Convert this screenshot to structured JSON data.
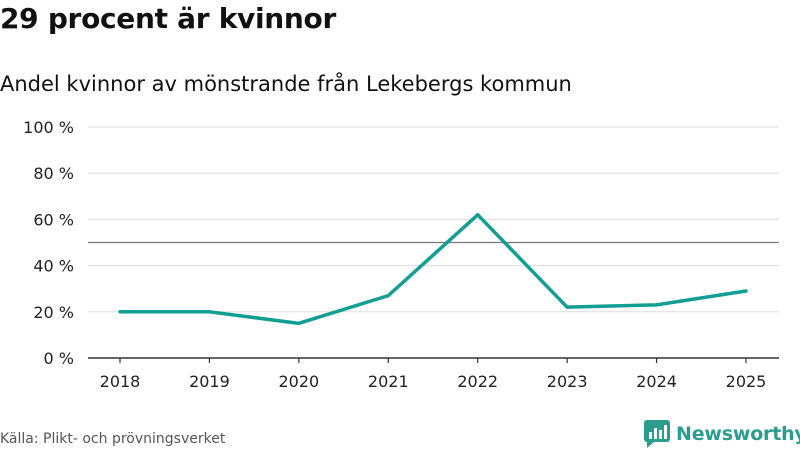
{
  "header": {
    "title": "29 procent är kvinnor",
    "subtitle": "Andel kvinnor av mönstrande från Lekebergs kommun"
  },
  "footer": {
    "source": "Källa: Plikt- och prövningsverket",
    "brand": "Newsworthy",
    "brand_icon": "newsworthy-logo-icon"
  },
  "colors": {
    "line": "#129e93",
    "grid": "#dddddd",
    "reference": "#777777",
    "axis": "#333333",
    "brand": "#2a9d8f"
  },
  "chart_data": {
    "type": "line",
    "title": "29 procent är kvinnor",
    "subtitle": "Andel kvinnor av mönstrande från Lekebergs kommun",
    "xlabel": "",
    "ylabel": "",
    "categories": [
      "2018",
      "2019",
      "2020",
      "2021",
      "2022",
      "2023",
      "2024",
      "2025"
    ],
    "series": [
      {
        "name": "Andel kvinnor",
        "values": [
          20,
          20,
          15,
          27,
          62,
          22,
          23,
          29
        ]
      }
    ],
    "ylim": [
      0,
      100
    ],
    "yticks": [
      0,
      20,
      40,
      60,
      80,
      100
    ],
    "ytick_labels": [
      "0 %",
      "20 %",
      "40 %",
      "60 %",
      "80 %",
      "100 %"
    ],
    "reference_line": 50,
    "grid": true,
    "legend": "none"
  }
}
